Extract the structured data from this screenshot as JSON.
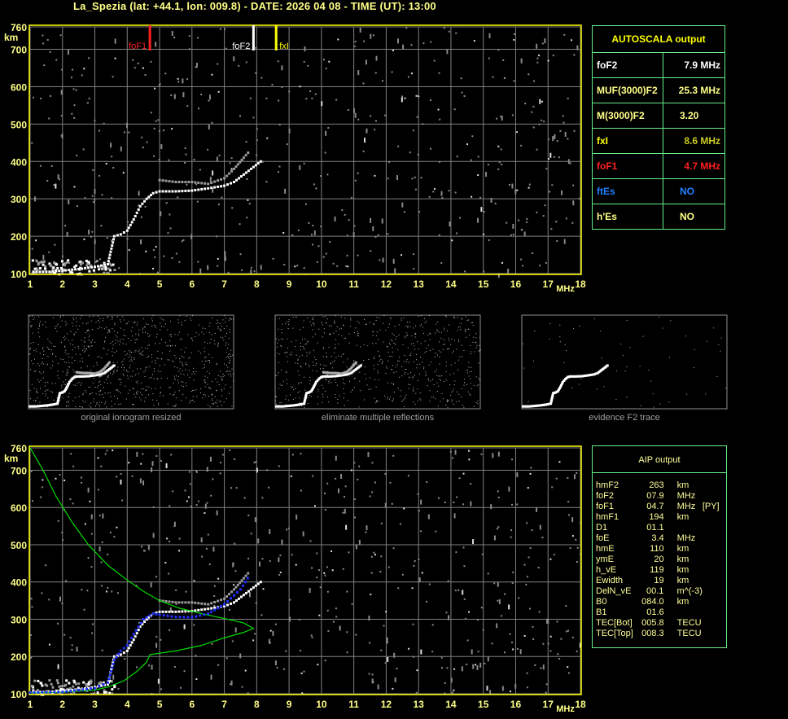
{
  "header": {
    "title": "La_Spezia (lat: +44.1, lon: 009.8) - DATE: 2026 04 08 - TIME (UT): 13:00"
  },
  "colors": {
    "axis_yellow": "#ffff00",
    "label_yellow": "#ffff88",
    "grid": "#808080",
    "table_border": "#66ee88",
    "foF1": "#ff2020",
    "foF2": "#ffffff",
    "fxI": "#ffff00",
    "ftEs": "#2080ff",
    "profile_green": "#00dd00",
    "aip_trace_blue": "#2030ff"
  },
  "autoscala": {
    "title": "AUTOSCALA output",
    "rows": [
      {
        "label": "foF2",
        "value": "7.9 MHz",
        "color": "#ffffff"
      },
      {
        "label": "MUF(3000)F2",
        "value": "25.3 MHz",
        "color": "#ffff88"
      },
      {
        "label": "M(3000)F2",
        "value": "3.20",
        "color": "#ffff88"
      },
      {
        "label": "fxI",
        "value": "8.6 MHz",
        "color": "#ffff00",
        "value_color": "#cccc22"
      },
      {
        "label": "foF1",
        "value": "4.7 MHz",
        "color": "#ff2020"
      },
      {
        "label": "ftEs",
        "value": "NO",
        "color": "#2080ff"
      },
      {
        "label": "h'Es",
        "value": "NO",
        "color": "#ffff88"
      }
    ]
  },
  "aip": {
    "title": "AIP output",
    "rows": [
      {
        "name": "hmF2",
        "value": "263",
        "unit": "km",
        "flag": ""
      },
      {
        "name": "foF2",
        "value": "07.9",
        "unit": "MHz",
        "flag": ""
      },
      {
        "name": "foF1",
        "value": "04.7",
        "unit": "MHz",
        "flag": "[PY]"
      },
      {
        "name": "hmF1",
        "value": "194",
        "unit": "km",
        "flag": ""
      },
      {
        "name": "D1",
        "value": "01.1",
        "unit": "",
        "flag": ""
      },
      {
        "name": "foE",
        "value": "3.4",
        "unit": "MHz",
        "flag": ""
      },
      {
        "name": "hmE",
        "value": "110",
        "unit": "km",
        "flag": ""
      },
      {
        "name": "ymE",
        "value": "20",
        "unit": "km",
        "flag": ""
      },
      {
        "name": "h_vE",
        "value": "119",
        "unit": "km",
        "flag": ""
      },
      {
        "name": "Ewidth",
        "value": "19",
        "unit": "km",
        "flag": ""
      },
      {
        "name": "DelN_vE",
        "value": "00.1",
        "unit": "m^(-3)",
        "flag": ""
      },
      {
        "name": "B0",
        "value": "084.0",
        "unit": "km",
        "flag": ""
      },
      {
        "name": "B1",
        "value": "01.6",
        "unit": "",
        "flag": ""
      },
      {
        "name": "TEC[Bot]",
        "value": "005.8",
        "unit": "TECU",
        "flag": ""
      },
      {
        "name": "TEC[Top]",
        "value": "008.3",
        "unit": "TECU",
        "flag": ""
      }
    ]
  },
  "thumbnails": [
    {
      "caption": "original ionogram resized"
    },
    {
      "caption": "eliminate multiple reflections"
    },
    {
      "caption": "evidence F2 trace"
    }
  ],
  "chart_data": [
    {
      "type": "scatter",
      "name_hint": "ionogram-top",
      "xlabel": "MHz",
      "ylabel": "km",
      "xlim": [
        1,
        18
      ],
      "ylim": [
        100,
        760
      ],
      "xticks": [
        "1",
        "2",
        "3",
        "4",
        "5",
        "6",
        "7",
        "8",
        "9",
        "10",
        "11",
        "12",
        "13",
        "14",
        "15",
        "16",
        "17",
        "18"
      ],
      "yticks": [
        "100",
        "200",
        "300",
        "400",
        "500",
        "600",
        "700",
        "760"
      ],
      "grid": true,
      "markers": [
        {
          "label": "foF1",
          "x": 4.7,
          "color": "#ff2020"
        },
        {
          "label": "foF2",
          "x": 7.9,
          "color": "#ffffff"
        },
        {
          "label": "fxI",
          "x": 8.6,
          "color": "#ffff00"
        }
      ],
      "trace_o": [
        [
          1.1,
          105
        ],
        [
          1.6,
          105
        ],
        [
          2.0,
          108
        ],
        [
          2.5,
          112
        ],
        [
          3.0,
          118
        ],
        [
          3.4,
          125
        ],
        [
          3.6,
          200
        ],
        [
          3.8,
          205
        ],
        [
          4.0,
          215
        ],
        [
          4.2,
          245
        ],
        [
          4.4,
          280
        ],
        [
          4.6,
          300
        ],
        [
          4.8,
          315
        ],
        [
          5.0,
          320
        ],
        [
          5.5,
          320
        ],
        [
          6.0,
          322
        ],
        [
          6.5,
          328
        ],
        [
          7.0,
          335
        ],
        [
          7.3,
          345
        ],
        [
          7.6,
          365
        ],
        [
          7.9,
          385
        ],
        [
          8.2,
          405
        ]
      ],
      "trace_x": [
        [
          5.0,
          350
        ],
        [
          5.5,
          345
        ],
        [
          6.0,
          345
        ],
        [
          6.5,
          340
        ],
        [
          7.0,
          355
        ],
        [
          7.3,
          380
        ],
        [
          7.6,
          410
        ],
        [
          7.8,
          430
        ]
      ]
    },
    {
      "type": "line",
      "name_hint": "ionogram-aip",
      "xlabel": "MHz",
      "ylabel": "km",
      "xlim": [
        1,
        18
      ],
      "ylim": [
        100,
        760
      ],
      "xticks": [
        "1",
        "2",
        "3",
        "4",
        "5",
        "6",
        "7",
        "8",
        "9",
        "10",
        "11",
        "12",
        "13",
        "14",
        "15",
        "16",
        "17",
        "18"
      ],
      "yticks": [
        "100",
        "200",
        "300",
        "400",
        "500",
        "600",
        "700",
        "760"
      ],
      "grid": true,
      "profile_green": [
        [
          1.0,
          102
        ],
        [
          2.0,
          104
        ],
        [
          3.0,
          110
        ],
        [
          3.4,
          118
        ],
        [
          3.9,
          135
        ],
        [
          4.3,
          160
        ],
        [
          4.6,
          185
        ],
        [
          4.7,
          205
        ],
        [
          5.5,
          215
        ],
        [
          6.3,
          230
        ],
        [
          7.0,
          250
        ],
        [
          7.6,
          265
        ],
        [
          7.9,
          275
        ],
        [
          7.6,
          290
        ],
        [
          7.0,
          302
        ],
        [
          6.3,
          315
        ],
        [
          5.6,
          330
        ],
        [
          5.0,
          350
        ],
        [
          4.5,
          375
        ],
        [
          4.0,
          405
        ],
        [
          3.4,
          445
        ],
        [
          2.8,
          500
        ],
        [
          2.3,
          560
        ],
        [
          1.8,
          630
        ],
        [
          1.4,
          700
        ],
        [
          1.0,
          760
        ]
      ],
      "trace_blue": [
        [
          1.0,
          103
        ],
        [
          2.0,
          105
        ],
        [
          3.0,
          115
        ],
        [
          3.4,
          130
        ],
        [
          3.6,
          190
        ],
        [
          3.8,
          215
        ],
        [
          4.0,
          230
        ],
        [
          4.2,
          260
        ],
        [
          4.5,
          300
        ],
        [
          4.8,
          315
        ],
        [
          5.0,
          312
        ],
        [
          5.5,
          306
        ],
        [
          6.0,
          305
        ],
        [
          6.5,
          315
        ],
        [
          7.0,
          340
        ],
        [
          7.5,
          380
        ],
        [
          7.8,
          420
        ]
      ]
    }
  ]
}
